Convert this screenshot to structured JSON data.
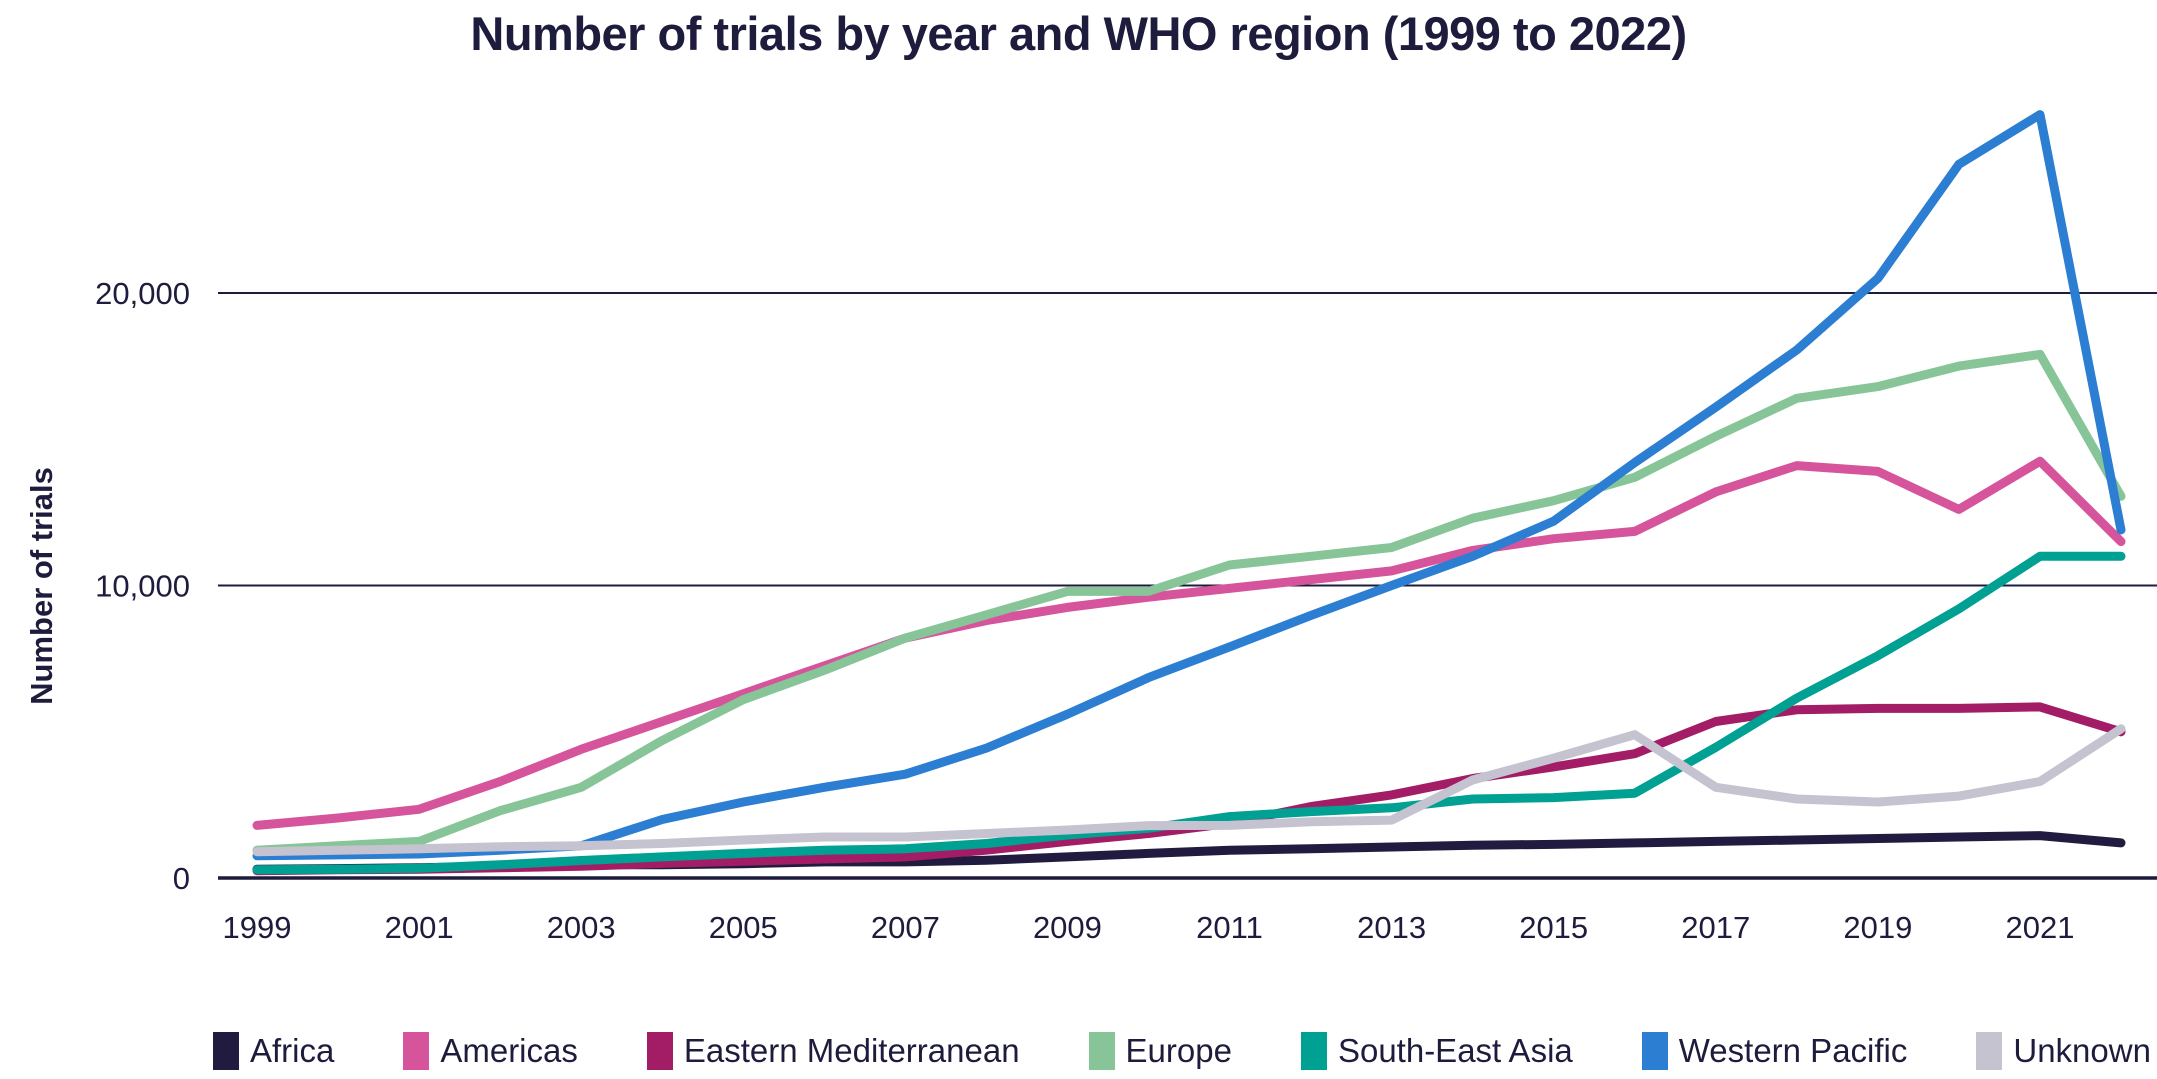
{
  "page": {
    "title": "Number of trials by year and WHO region (1999 to 2022)"
  },
  "colors": {
    "text": "#1e1c3c",
    "grid": "#1e1c3c",
    "background": "#ffffff"
  },
  "chart_data": {
    "type": "line",
    "title": "Number of trials by year and WHO region (1999 to 2022)",
    "xlabel": "",
    "ylabel": "Number of trials",
    "grid": "horizontal",
    "legend_position": "bottom",
    "ylim": [
      0,
      27000
    ],
    "x": [
      1999,
      2000,
      2001,
      2002,
      2003,
      2004,
      2005,
      2006,
      2007,
      2008,
      2009,
      2010,
      2011,
      2012,
      2013,
      2014,
      2015,
      2016,
      2017,
      2018,
      2019,
      2020,
      2021,
      2022
    ],
    "x_tick_labels": [
      "1999",
      "2001",
      "2003",
      "2005",
      "2007",
      "2009",
      "2011",
      "2013",
      "2015",
      "2017",
      "2019",
      "2021"
    ],
    "y_ticks": [
      {
        "value": 0,
        "label": "0"
      },
      {
        "value": 10000,
        "label": "10,000"
      },
      {
        "value": 20000,
        "label": "20,000"
      }
    ],
    "series": [
      {
        "name": "Africa",
        "color": "#211c3f",
        "values": [
          300,
          320,
          350,
          400,
          460,
          450,
          490,
          550,
          550,
          610,
          720,
          840,
          950,
          1000,
          1060,
          1120,
          1150,
          1200,
          1250,
          1300,
          1350,
          1400,
          1450,
          1200
        ]
      },
      {
        "name": "Americas",
        "color": "#d6549b",
        "values": [
          1800,
          2050,
          2350,
          3300,
          4400,
          5350,
          6300,
          7250,
          8200,
          8800,
          9250,
          9600,
          9900,
          10200,
          10500,
          11200,
          11600,
          11850,
          13200,
          14100,
          13900,
          12600,
          14250,
          11500
        ]
      },
      {
        "name": "Eastern Mediterranean",
        "color": "#a21d66",
        "values": [
          250,
          280,
          300,
          350,
          400,
          500,
          570,
          650,
          720,
          950,
          1250,
          1520,
          1870,
          2440,
          2840,
          3400,
          3800,
          4250,
          5350,
          5750,
          5800,
          5800,
          5850,
          5000
        ]
      },
      {
        "name": "Europe",
        "color": "#87c598",
        "values": [
          950,
          1100,
          1250,
          2300,
          3100,
          4700,
          6100,
          7100,
          8200,
          9000,
          9800,
          9800,
          10700,
          11000,
          11300,
          12300,
          12900,
          13700,
          15100,
          16400,
          16800,
          17500,
          17900,
          13050
        ]
      },
      {
        "name": "South-East Asia",
        "color": "#00a093",
        "values": [
          280,
          300,
          330,
          450,
          600,
          720,
          840,
          950,
          1000,
          1180,
          1470,
          1700,
          2100,
          2270,
          2400,
          2700,
          2750,
          2900,
          4470,
          6150,
          7600,
          9200,
          11000,
          11000
        ]
      },
      {
        "name": "Western Pacific",
        "color": "#2b7ed2",
        "values": [
          760,
          790,
          820,
          950,
          1100,
          2000,
          2600,
          3100,
          3550,
          4440,
          5600,
          6850,
          7900,
          8970,
          10000,
          11000,
          12200,
          14200,
          16100,
          18050,
          20500,
          24400,
          26100,
          11900
        ]
      },
      {
        "name": "Unknown",
        "color": "#c6c3d1",
        "values": [
          900,
          950,
          1000,
          1070,
          1100,
          1180,
          1300,
          1400,
          1400,
          1520,
          1640,
          1790,
          1800,
          1920,
          1980,
          3350,
          4100,
          4900,
          3100,
          2700,
          2600,
          2800,
          3300,
          5100
        ]
      }
    ]
  }
}
